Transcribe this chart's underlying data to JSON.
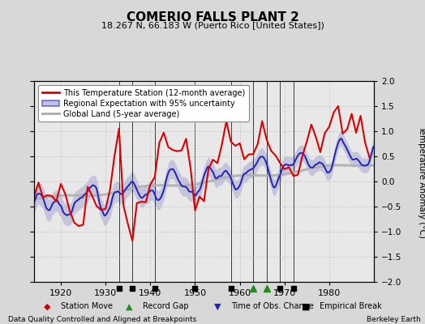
{
  "title": "COMERIO FALLS PLANT 2",
  "subtitle": "18.267 N, 66.183 W (Puerto Rico [United States])",
  "ylabel": "Temperature Anomaly (°C)",
  "xlabel_note": "Data Quality Controlled and Aligned at Breakpoints",
  "credit": "Berkeley Earth",
  "xlim": [
    1914,
    1990
  ],
  "ylim": [
    -2,
    2
  ],
  "yticks": [
    -2,
    -1.5,
    -1,
    -0.5,
    0,
    0.5,
    1,
    1.5,
    2
  ],
  "xticks": [
    1920,
    1930,
    1940,
    1950,
    1960,
    1970,
    1980
  ],
  "bg_color": "#d8d8d8",
  "plot_bg_color": "#e8e8e8",
  "legend_labels": [
    "This Temperature Station (12-month average)",
    "Regional Expectation with 95% uncertainty",
    "Global Land (5-year average)"
  ],
  "station_color": "#dd0000",
  "regional_color": "#2222bb",
  "regional_fill_color": "#9999cc",
  "global_color": "#b0b0b0",
  "vertical_lines": [
    1933,
    1936,
    1941,
    1950,
    1958,
    1963,
    1966,
    1969,
    1972
  ],
  "empirical_breaks": [
    1933,
    1936,
    1941,
    1950,
    1958,
    1969,
    1972
  ],
  "record_gaps": [
    1963,
    1966
  ],
  "grid_color": "#bbbbbb",
  "marker_strip_color": "#cccccc"
}
